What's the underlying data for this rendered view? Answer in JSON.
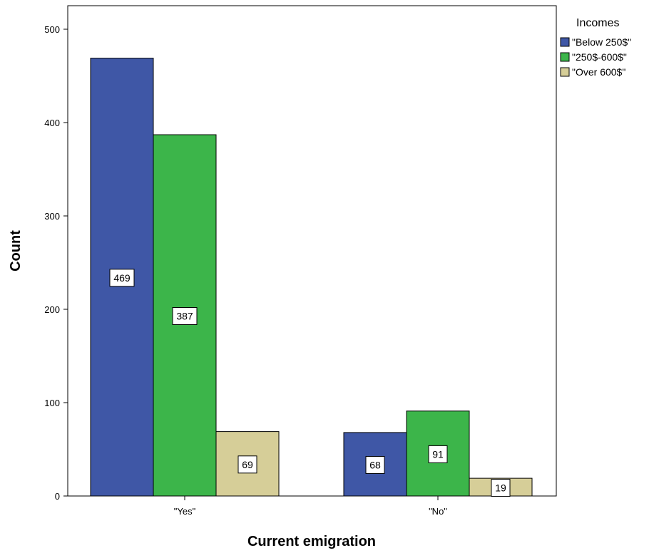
{
  "chart_data": {
    "type": "bar",
    "categories": [
      "\"Yes\"",
      "\"No\""
    ],
    "series": [
      {
        "name": "\"Below 250$\"",
        "values": [
          469,
          68
        ],
        "color": "#3F57A6"
      },
      {
        "name": "\"250$-600$\"",
        "values": [
          387,
          91
        ],
        "color": "#3CB54A"
      },
      {
        "name": "\"Over 600$\"",
        "values": [
          69,
          19
        ],
        "color": "#D6CE98"
      }
    ],
    "title": "",
    "xlabel": "Current emigration",
    "ylabel": "Count",
    "ylim": [
      0,
      500
    ],
    "yticks": [
      0,
      100,
      200,
      300,
      400,
      500
    ],
    "legend_title": "Incomes",
    "legend_position": "top-right",
    "grid": false
  }
}
